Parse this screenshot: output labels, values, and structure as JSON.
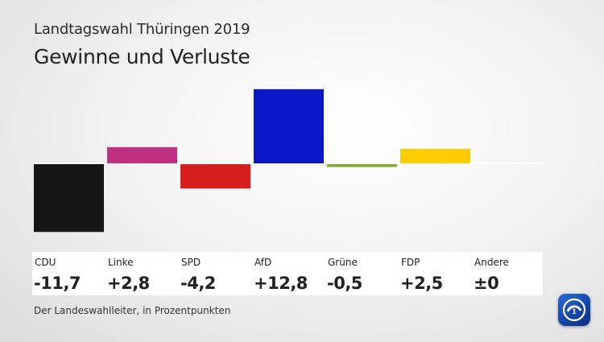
{
  "header": {
    "supertitle": "Landtagswahl Thüringen 2019",
    "title": "Gewinne und Verluste"
  },
  "chart_data": {
    "type": "bar",
    "categories": [
      "CDU",
      "Linke",
      "SPD",
      "AfD",
      "Grüne",
      "FDP",
      "Andere"
    ],
    "values": [
      -11.7,
      2.8,
      -4.2,
      12.8,
      -0.5,
      2.5,
      0
    ],
    "value_labels": [
      "-11,7",
      "+2,8",
      "-4,2",
      "+12,8",
      "-0,5",
      "+2,5",
      "±0"
    ],
    "colors": [
      "#151515",
      "#bf3180",
      "#d81f1f",
      "#0a17c8",
      "#7fae2d",
      "#ffcc00",
      "#cccccc"
    ],
    "ylabel": "",
    "xlabel": ""
  },
  "footer": {
    "source": "Der Landeswahlleiter, in Prozentpunkten"
  },
  "logo": {
    "icon": "ard-logo-icon"
  }
}
